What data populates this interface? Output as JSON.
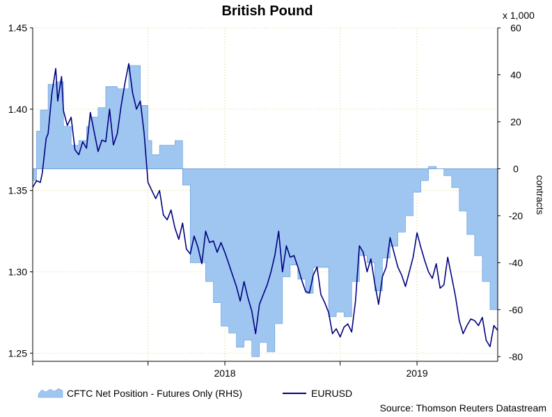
{
  "chart_data": {
    "type": "line+area",
    "title": "British Pound",
    "source": "Source: Thomson Reuters Datastream",
    "left_axis": {
      "ylim": [
        1.245,
        1.45
      ],
      "ticks": [
        "1.45",
        "1.40",
        "1.35",
        "1.30",
        "1.25"
      ],
      "tick_values": [
        1.45,
        1.4,
        1.35,
        1.3,
        1.25
      ]
    },
    "right_axis": {
      "ylim": [
        -82,
        60
      ],
      "ticks": [
        "60",
        "40",
        "20",
        "0",
        "-20",
        "-40",
        "-60",
        "-80"
      ],
      "tick_values": [
        60,
        40,
        20,
        0,
        -20,
        -40,
        -60,
        -80
      ],
      "multiplier": "x 1,000",
      "label": "contracts"
    },
    "x_axis": {
      "xlim": [
        2017.0,
        2019.42
      ],
      "year_labels": [
        {
          "label": "2018",
          "x": 2018.0
        },
        {
          "label": "2019",
          "x": 2019.0
        }
      ],
      "gridlines": [
        2017.0,
        2017.6,
        2018.0,
        2018.6,
        2019.0
      ]
    },
    "legend": [
      {
        "label": "CFTC Net Position - Futures Only (RHS)",
        "kind": "area",
        "color": "#9ec6f0"
      },
      {
        "label": "EURUSD",
        "kind": "line",
        "color": "#000080"
      }
    ],
    "series": [
      {
        "name": "CFTC Net Position - Futures Only (RHS)",
        "axis": "right",
        "kind": "area",
        "step": true,
        "x": [
          2017.0,
          2017.02,
          2017.04,
          2017.08,
          2017.12,
          2017.16,
          2017.2,
          2017.24,
          2017.28,
          2017.3,
          2017.34,
          2017.38,
          2017.44,
          2017.5,
          2017.56,
          2017.6,
          2017.62,
          2017.66,
          2017.7,
          2017.74,
          2017.78,
          2017.82,
          2017.86,
          2017.9,
          2017.94,
          2017.98,
          2018.02,
          2018.06,
          2018.1,
          2018.14,
          2018.18,
          2018.22,
          2018.26,
          2018.3,
          2018.34,
          2018.38,
          2018.42,
          2018.46,
          2018.5,
          2018.54,
          2018.58,
          2018.62,
          2018.66,
          2018.7,
          2018.74,
          2018.78,
          2018.82,
          2018.86,
          2018.9,
          2018.94,
          2018.98,
          2019.02,
          2019.06,
          2019.1,
          2019.14,
          2019.18,
          2019.22,
          2019.26,
          2019.3,
          2019.34,
          2019.38,
          2019.42
        ],
        "values": [
          -5,
          16,
          25,
          36,
          37,
          18,
          10,
          12,
          18,
          22,
          26,
          35,
          34,
          44,
          27,
          12,
          6,
          10,
          10,
          12,
          -7,
          -40,
          -40,
          -48,
          -57,
          -67,
          -70,
          -76,
          -73,
          -80,
          -74,
          -78,
          -66,
          -46,
          -41,
          -47,
          -53,
          -42,
          -42,
          -63,
          -61,
          -63,
          -48,
          -37,
          -40,
          -52,
          -38,
          -33,
          -27,
          -20,
          -10,
          -5,
          1,
          0,
          -3,
          -8,
          -18,
          -28,
          -37,
          -48,
          -60,
          -60
        ]
      },
      {
        "name": "EURUSD",
        "axis": "left",
        "kind": "line",
        "x": [
          2017.0,
          2017.02,
          2017.04,
          2017.05,
          2017.07,
          2017.08,
          2017.1,
          2017.12,
          2017.13,
          2017.15,
          2017.16,
          2017.18,
          2017.2,
          2017.22,
          2017.24,
          2017.26,
          2017.28,
          2017.3,
          2017.32,
          2017.34,
          2017.36,
          2017.38,
          2017.4,
          2017.42,
          2017.44,
          2017.46,
          2017.48,
          2017.5,
          2017.52,
          2017.54,
          2017.56,
          2017.58,
          2017.6,
          2017.62,
          2017.64,
          2017.66,
          2017.68,
          2017.7,
          2017.72,
          2017.74,
          2017.76,
          2017.78,
          2017.8,
          2017.82,
          2017.84,
          2017.86,
          2017.88,
          2017.9,
          2017.92,
          2017.94,
          2017.96,
          2017.98,
          2018.0,
          2018.02,
          2018.04,
          2018.06,
          2018.08,
          2018.1,
          2018.12,
          2018.14,
          2018.16,
          2018.18,
          2018.2,
          2018.22,
          2018.24,
          2018.26,
          2018.28,
          2018.3,
          2018.32,
          2018.34,
          2018.36,
          2018.38,
          2018.4,
          2018.42,
          2018.44,
          2018.46,
          2018.48,
          2018.5,
          2018.52,
          2018.54,
          2018.56,
          2018.58,
          2018.6,
          2018.62,
          2018.64,
          2018.66,
          2018.68,
          2018.7,
          2018.72,
          2018.74,
          2018.76,
          2018.78,
          2018.8,
          2018.82,
          2018.84,
          2018.86,
          2018.88,
          2018.9,
          2018.92,
          2018.94,
          2018.96,
          2018.98,
          2019.0,
          2019.02,
          2019.04,
          2019.06,
          2019.08,
          2019.1,
          2019.12,
          2019.14,
          2019.16,
          2019.18,
          2019.2,
          2019.22,
          2019.24,
          2019.26,
          2019.28,
          2019.3,
          2019.32,
          2019.34,
          2019.36,
          2019.38,
          2019.4,
          2019.42
        ],
        "values": [
          1.352,
          1.356,
          1.355,
          1.361,
          1.382,
          1.385,
          1.41,
          1.425,
          1.405,
          1.42,
          1.399,
          1.39,
          1.395,
          1.375,
          1.372,
          1.38,
          1.376,
          1.398,
          1.386,
          1.374,
          1.381,
          1.38,
          1.4,
          1.378,
          1.385,
          1.402,
          1.416,
          1.428,
          1.41,
          1.4,
          1.405,
          1.385,
          1.355,
          1.35,
          1.345,
          1.35,
          1.335,
          1.332,
          1.338,
          1.327,
          1.32,
          1.33,
          1.314,
          1.311,
          1.322,
          1.315,
          1.305,
          1.325,
          1.318,
          1.319,
          1.312,
          1.318,
          1.312,
          1.305,
          1.298,
          1.291,
          1.282,
          1.294,
          1.284,
          1.276,
          1.262,
          1.28,
          1.286,
          1.292,
          1.3,
          1.31,
          1.325,
          1.3,
          1.316,
          1.309,
          1.31,
          1.303,
          1.295,
          1.288,
          1.287,
          1.298,
          1.303,
          1.286,
          1.281,
          1.275,
          1.262,
          1.265,
          1.26,
          1.266,
          1.268,
          1.263,
          1.282,
          1.316,
          1.312,
          1.3,
          1.308,
          1.293,
          1.28,
          1.297,
          1.303,
          1.321,
          1.312,
          1.303,
          1.298,
          1.291,
          1.3,
          1.309,
          1.324,
          1.315,
          1.307,
          1.3,
          1.296,
          1.305,
          1.29,
          1.292,
          1.309,
          1.297,
          1.285,
          1.27,
          1.262,
          1.267,
          1.271,
          1.27,
          1.267,
          1.272,
          1.258,
          1.254,
          1.267,
          1.264
        ]
      }
    ]
  }
}
